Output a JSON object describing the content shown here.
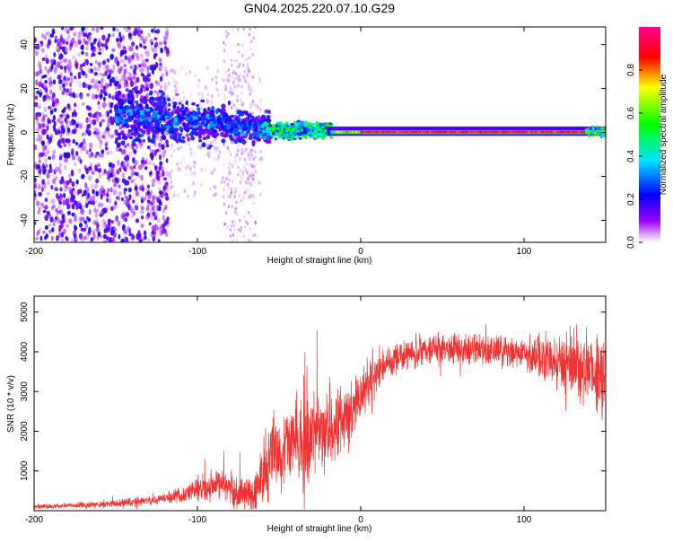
{
  "page_title": "GN04.2025.220.07.10.G29",
  "chart_data": [
    {
      "type": "heatmap",
      "title": "GN04.2025.220.07.10.G29",
      "xlabel": "Height of straight line (km)",
      "ylabel": "Frequency (Hz)",
      "xlim": [
        -200,
        150
      ],
      "ylim": [
        -50,
        48
      ],
      "x_ticks": [
        -200,
        -100,
        0,
        100
      ],
      "x_tick_labels": [
        "-200",
        "-100",
        "0",
        "100"
      ],
      "y_ticks": [
        -40,
        -20,
        0,
        20,
        40
      ],
      "y_tick_labels": [
        "-40",
        "-20",
        "0",
        "20",
        "40"
      ],
      "colorbar": {
        "label": "Normalized spectral amplitude",
        "range": [
          0,
          1
        ],
        "ticks": [
          0.0,
          0.2,
          0.4,
          0.6,
          0.8
        ],
        "tick_labels": [
          "0.0",
          "0.2",
          "0.4",
          "0.6",
          "0.8"
        ],
        "colors": [
          "#ffffff",
          "#9a00ff",
          "#0000ff",
          "#00e5ff",
          "#00ff00",
          "#ffff00",
          "#ff0000",
          "#ff0090"
        ]
      },
      "regions": [
        {
          "x_range": [
            -200,
            -120
          ],
          "description": "scattered noise",
          "amplitude": 0.1
        },
        {
          "x_range": [
            -120,
            -60
          ],
          "center_freq_hz": 5,
          "spread_hz": 8,
          "amplitude": 0.3
        },
        {
          "x_range": [
            -60,
            -20
          ],
          "center_freq_hz": 1,
          "spread_hz": 4,
          "amplitude": 0.5
        },
        {
          "x_range": [
            -20,
            150
          ],
          "center_freq_hz": 0,
          "spread_hz": 1,
          "amplitude": 0.95
        }
      ]
    },
    {
      "type": "line",
      "xlabel": "Height of straight line (km)",
      "ylabel": "SNR (10 * v/v)",
      "xlim": [
        -200,
        150
      ],
      "ylim": [
        0,
        5400
      ],
      "x_ticks": [
        -200,
        -100,
        0,
        100
      ],
      "x_tick_labels": [
        "-200",
        "-100",
        "0",
        "100"
      ],
      "y_ticks": [
        1000,
        2000,
        3000,
        4000,
        5000
      ],
      "y_tick_labels": [
        "1000",
        "2000",
        "3000",
        "4000",
        "5000"
      ],
      "color": "#ee3333",
      "trend": {
        "x": [
          -200,
          -160,
          -130,
          -110,
          -95,
          -85,
          -75,
          -65,
          -55,
          -45,
          -35,
          -25,
          -15,
          -5,
          5,
          15,
          30,
          50,
          70,
          90,
          110,
          125,
          135,
          145,
          150
        ],
        "y": [
          100,
          150,
          250,
          400,
          600,
          700,
          400,
          450,
          1400,
          1700,
          1600,
          2000,
          2200,
          2500,
          3300,
          3700,
          4000,
          4100,
          4050,
          4000,
          3900,
          3700,
          3600,
          3400,
          3600
        ]
      },
      "noise_amplitude": {
        "x": [
          -200,
          -120,
          -100,
          -70,
          -60,
          -40,
          -20,
          0,
          20,
          100,
          120,
          150
        ],
        "y": [
          60,
          120,
          350,
          500,
          900,
          1200,
          1100,
          700,
          400,
          400,
          700,
          1200
        ]
      }
    }
  ]
}
